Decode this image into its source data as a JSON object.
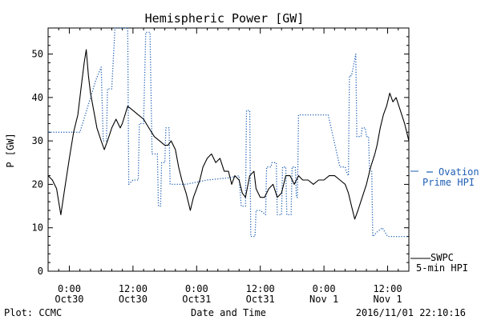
{
  "chart_data": {
    "type": "line",
    "title": "Hemispheric Power [GW]",
    "ylabel": "P [GW]",
    "xlabel": "Date and Time",
    "ylim": [
      0,
      56
    ],
    "xlim": [
      -2,
      32
    ],
    "x_units": "hours since 2016-10-30 00:00",
    "y_ticks": [
      0,
      10,
      20,
      30,
      40,
      50
    ],
    "x_ticks": [
      {
        "x": 0,
        "line1": "0:00",
        "line2": "Oct30"
      },
      {
        "x": 6,
        "line1": "12:00",
        "line2": "Oct30"
      },
      {
        "x": 12,
        "line1": "0:00",
        "line2": "Oct31"
      },
      {
        "x": 18,
        "line1": "12:00",
        "line2": "Oct31"
      },
      {
        "x": 24,
        "line1": "0:00",
        "line2": "Nov 1"
      },
      {
        "x": 30,
        "line1": "12:00",
        "line2": "Nov 1"
      }
    ],
    "series": [
      {
        "name": "Ovation Prime HPI",
        "color": "#1f5fb4",
        "style": "dotted",
        "step": true,
        "points": [
          [
            -2,
            32
          ],
          [
            0,
            32
          ],
          [
            1,
            32
          ],
          [
            2.5,
            44
          ],
          [
            3,
            47
          ],
          [
            3.2,
            30
          ],
          [
            3.5,
            30
          ],
          [
            3.6,
            42
          ],
          [
            4,
            42
          ],
          [
            4.3,
            56
          ],
          [
            5.5,
            56
          ],
          [
            5.6,
            20
          ],
          [
            6,
            21
          ],
          [
            6.5,
            21
          ],
          [
            6.6,
            34
          ],
          [
            7,
            34
          ],
          [
            7.2,
            55
          ],
          [
            7.6,
            55
          ],
          [
            7.8,
            27
          ],
          [
            8.3,
            27
          ],
          [
            8.4,
            15
          ],
          [
            8.6,
            15
          ],
          [
            8.7,
            25
          ],
          [
            9,
            25
          ],
          [
            9.1,
            33
          ],
          [
            9.4,
            33
          ],
          [
            9.5,
            20
          ],
          [
            10,
            20
          ],
          [
            11,
            20
          ],
          [
            12,
            20.5
          ],
          [
            13,
            21
          ],
          [
            15,
            21.5
          ],
          [
            16,
            22
          ],
          [
            16.2,
            15
          ],
          [
            16.6,
            15
          ],
          [
            16.7,
            37
          ],
          [
            17,
            37
          ],
          [
            17.1,
            8
          ],
          [
            17.5,
            8
          ],
          [
            17.6,
            14
          ],
          [
            18,
            14
          ],
          [
            18.5,
            13
          ],
          [
            18.6,
            24
          ],
          [
            19,
            24
          ],
          [
            19.1,
            25
          ],
          [
            19.5,
            25
          ],
          [
            19.6,
            13
          ],
          [
            20,
            13
          ],
          [
            20.1,
            24
          ],
          [
            20.4,
            24
          ],
          [
            20.5,
            13
          ],
          [
            20.9,
            13
          ],
          [
            21,
            24
          ],
          [
            21.3,
            24
          ],
          [
            21.4,
            17
          ],
          [
            21.5,
            17
          ],
          [
            21.6,
            36
          ],
          [
            22.5,
            36
          ],
          [
            23.5,
            36
          ],
          [
            24,
            36
          ],
          [
            24.2,
            36
          ],
          [
            24.4,
            36
          ],
          [
            25.5,
            24
          ],
          [
            26,
            24
          ],
          [
            26.1,
            23
          ],
          [
            26.3,
            22
          ],
          [
            26.4,
            45
          ],
          [
            26.6,
            45
          ],
          [
            27,
            50
          ],
          [
            27,
            50
          ],
          [
            27.1,
            31
          ],
          [
            27.5,
            31
          ],
          [
            27.6,
            33
          ],
          [
            27.9,
            33
          ],
          [
            28,
            31
          ],
          [
            28.2,
            31
          ],
          [
            28.3,
            23
          ],
          [
            28.5,
            23
          ],
          [
            28.6,
            8
          ],
          [
            29,
            9
          ],
          [
            29.5,
            10
          ],
          [
            30,
            8
          ],
          [
            31,
            8
          ],
          [
            32,
            8
          ]
        ]
      },
      {
        "name": "SWPC 5-min HPI",
        "color": "#000000",
        "style": "solid",
        "step": false,
        "points": [
          [
            -2,
            22
          ],
          [
            -1.6,
            21
          ],
          [
            -1.2,
            19
          ],
          [
            -1,
            16
          ],
          [
            -0.8,
            13
          ],
          [
            -0.5,
            18
          ],
          [
            0,
            26
          ],
          [
            0.4,
            32
          ],
          [
            0.8,
            36
          ],
          [
            1.1,
            42
          ],
          [
            1.4,
            48
          ],
          [
            1.6,
            51
          ],
          [
            1.8,
            45
          ],
          [
            2,
            41
          ],
          [
            2.3,
            37
          ],
          [
            2.6,
            33
          ],
          [
            3,
            30
          ],
          [
            3.3,
            28
          ],
          [
            3.6,
            30
          ],
          [
            4,
            33
          ],
          [
            4.4,
            35
          ],
          [
            4.8,
            33
          ],
          [
            5,
            34
          ],
          [
            5.5,
            38
          ],
          [
            6,
            37
          ],
          [
            6.5,
            36
          ],
          [
            7,
            35
          ],
          [
            7.5,
            33
          ],
          [
            8,
            31
          ],
          [
            8.5,
            30
          ],
          [
            9,
            29
          ],
          [
            9.3,
            29
          ],
          [
            9.6,
            30
          ],
          [
            10,
            28
          ],
          [
            10.3,
            24
          ],
          [
            10.6,
            21
          ],
          [
            11,
            18
          ],
          [
            11.4,
            14
          ],
          [
            11.7,
            17
          ],
          [
            12,
            19
          ],
          [
            12.3,
            21
          ],
          [
            12.6,
            24
          ],
          [
            13,
            26
          ],
          [
            13.4,
            27
          ],
          [
            13.8,
            25
          ],
          [
            14.2,
            26
          ],
          [
            14.6,
            23
          ],
          [
            15,
            23
          ],
          [
            15.3,
            20
          ],
          [
            15.6,
            22
          ],
          [
            16,
            21
          ],
          [
            16.3,
            18
          ],
          [
            16.6,
            17
          ],
          [
            17,
            22
          ],
          [
            17.4,
            23
          ],
          [
            17.6,
            19
          ],
          [
            18,
            17
          ],
          [
            18.4,
            17
          ],
          [
            18.8,
            19
          ],
          [
            19.2,
            20
          ],
          [
            19.6,
            17
          ],
          [
            20,
            18
          ],
          [
            20.4,
            22
          ],
          [
            20.8,
            22
          ],
          [
            21.2,
            20
          ],
          [
            21.6,
            22
          ],
          [
            22,
            21
          ],
          [
            22.5,
            21
          ],
          [
            23,
            20
          ],
          [
            23.5,
            21
          ],
          [
            24,
            21
          ],
          [
            24.5,
            22
          ],
          [
            25,
            22
          ],
          [
            25.5,
            21
          ],
          [
            26,
            20
          ],
          [
            26.3,
            18
          ],
          [
            26.6,
            15
          ],
          [
            26.9,
            12
          ],
          [
            27.2,
            14
          ],
          [
            27.6,
            17
          ],
          [
            28,
            20
          ],
          [
            28.4,
            24
          ],
          [
            28.8,
            27
          ],
          [
            29,
            29
          ],
          [
            29.3,
            33
          ],
          [
            29.6,
            36
          ],
          [
            29.9,
            38
          ],
          [
            30.2,
            41
          ],
          [
            30.5,
            39
          ],
          [
            30.8,
            40
          ],
          [
            31.2,
            37
          ],
          [
            31.6,
            34
          ],
          [
            32,
            30
          ]
        ]
      }
    ]
  },
  "footer": {
    "left": "Plot: CCMC",
    "right": "2016/11/01 22:10:16"
  },
  "legend": {
    "blue_line1": "Ovation",
    "blue_line2": "Prime HPI",
    "black_line1": "SWPC",
    "black_line2": "5-min HPI"
  }
}
